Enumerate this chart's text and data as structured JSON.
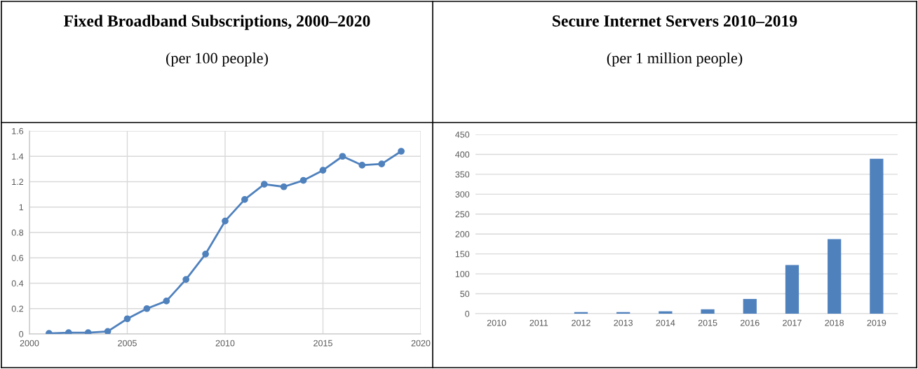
{
  "chart_data": [
    {
      "type": "line",
      "title": "Fixed Broadband Subscriptions, 2000–2020",
      "subtitle": "(per 100 people)",
      "x": [
        2001,
        2002,
        2003,
        2004,
        2005,
        2006,
        2007,
        2008,
        2009,
        2010,
        2011,
        2012,
        2013,
        2014,
        2015,
        2016,
        2017,
        2018,
        2019
      ],
      "series": [
        {
          "color": "#4f81bd",
          "values": [
            0.005,
            0.01,
            0.01,
            0.02,
            0.12,
            0.2,
            0.26,
            0.43,
            0.63,
            0.89,
            1.06,
            1.18,
            1.16,
            1.21,
            1.29,
            1.4,
            1.33,
            1.34,
            1.44
          ]
        }
      ],
      "xlim": [
        2000,
        2020
      ],
      "ylim": [
        0,
        1.6
      ],
      "xticks": [
        2000,
        2005,
        2010,
        2015,
        2020
      ],
      "yticks": [
        0,
        0.2,
        0.4,
        0.6,
        0.8,
        1,
        1.2,
        1.4,
        1.6
      ],
      "grid": true,
      "marker": "circle",
      "line_style": "solid"
    },
    {
      "type": "bar",
      "title": "Secure Internet Servers 2010–2019",
      "subtitle": "(per 1 million people)",
      "categories": [
        "2010",
        "2011",
        "2012",
        "2013",
        "2014",
        "2015",
        "2016",
        "2017",
        "2018",
        "2019"
      ],
      "series": [
        {
          "color": "#4f81bd",
          "values": [
            0,
            0,
            4,
            4,
            6,
            11,
            37,
            122,
            187,
            389
          ]
        }
      ],
      "ylim": [
        0,
        450
      ],
      "yticks": [
        0,
        50,
        100,
        150,
        200,
        250,
        300,
        350,
        400,
        450
      ],
      "grid": "y"
    }
  ]
}
